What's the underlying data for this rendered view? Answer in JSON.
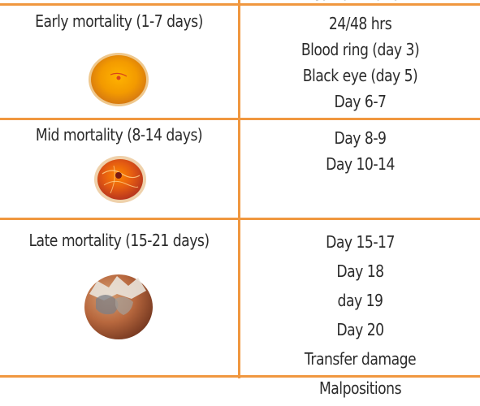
{
  "table": {
    "top_cut_text": "contamination",
    "rows": [
      {
        "stage": "Early mortality (1-7 days)",
        "image": "early-embryo-egg",
        "timings": [
          "24/48 hrs",
          "Blood ring (day 3)",
          "Black eye (day 5)",
          "Day 6-7"
        ]
      },
      {
        "stage": "Mid mortality (8-14 days)",
        "image": "mid-embryo-egg",
        "timings": [
          "Day 8-9",
          "Day 10-14"
        ]
      },
      {
        "stage": "Late mortality (15-21 days)",
        "image": "late-embryo-egg",
        "timings": [
          "Day 15-17",
          "Day 18",
          "day 19",
          "Day 20",
          "Transfer damage",
          "Malpositions"
        ]
      }
    ]
  },
  "colors": {
    "border": "#f0973f",
    "text": "#2b2b2b"
  }
}
